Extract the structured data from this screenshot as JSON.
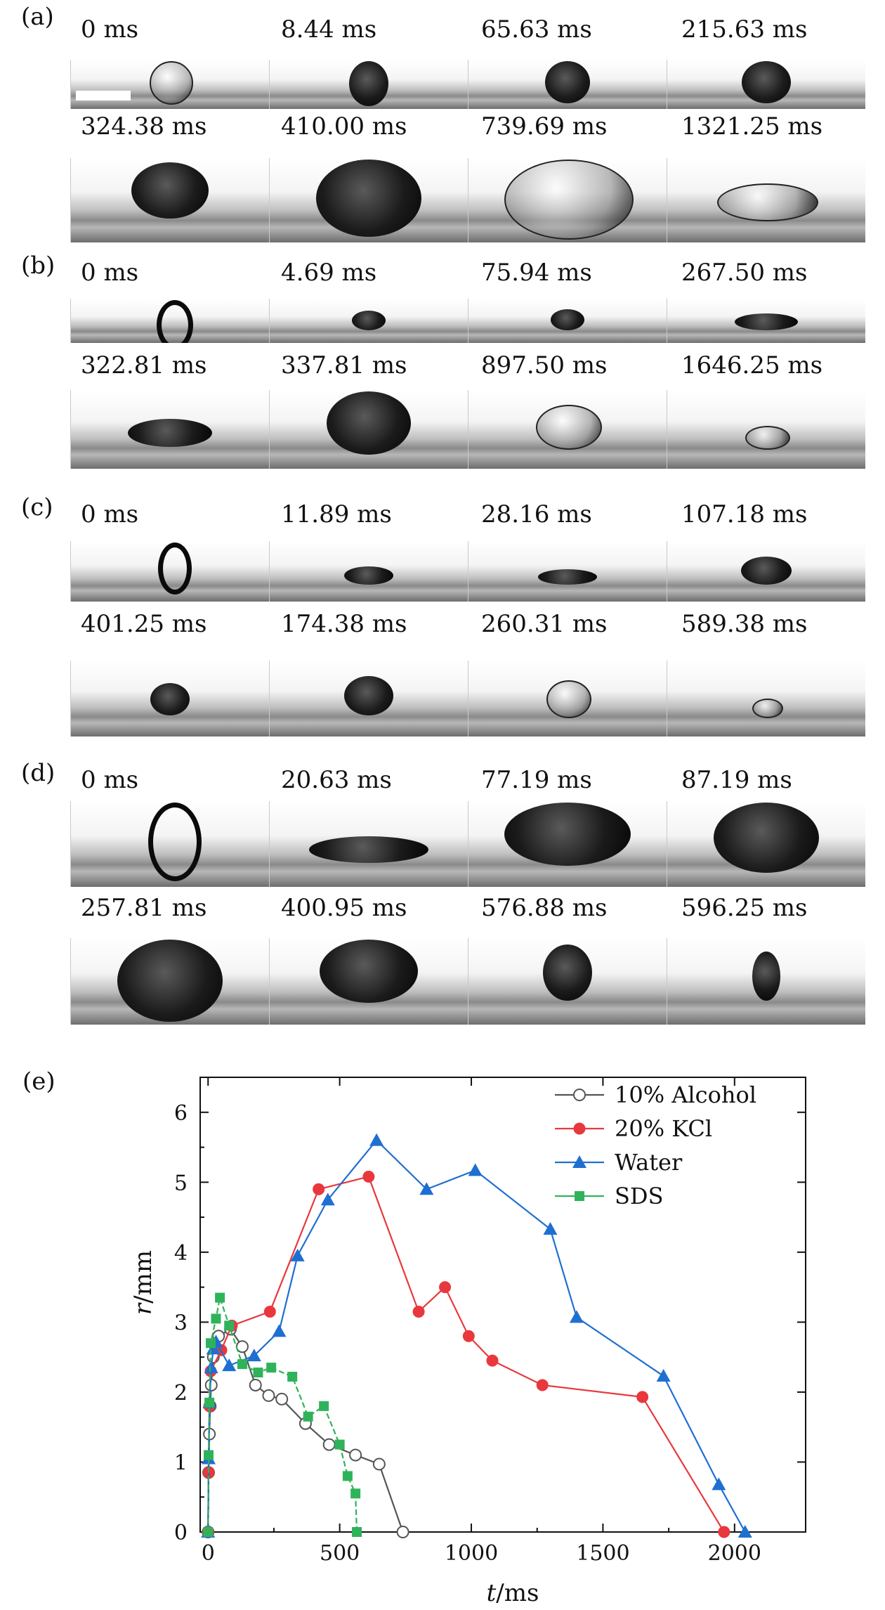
{
  "panels": [
    {
      "letter": "(a)",
      "row1": [
        "0 ms",
        "8.44 ms",
        "65.63 ms",
        "215.63 ms"
      ],
      "row2": [
        "324.38 ms",
        "410.00 ms",
        "739.69 ms",
        "1321.25 ms"
      ]
    },
    {
      "letter": "(b)",
      "row1": [
        "0 ms",
        "4.69 ms",
        "75.94 ms",
        "267.50 ms"
      ],
      "row2": [
        "322.81 ms",
        "337.81 ms",
        "897.50 ms",
        "1646.25 ms"
      ]
    },
    {
      "letter": "(c)",
      "row1": [
        "0 ms",
        "11.89 ms",
        "28.16 ms",
        "107.18 ms"
      ],
      "row2": [
        "401.25 ms",
        "174.38 ms",
        "260.31 ms",
        "589.38 ms"
      ]
    },
    {
      "letter": "(d)",
      "row1": [
        "0 ms",
        "20.63 ms",
        "77.19 ms",
        "87.19 ms"
      ],
      "row2": [
        "257.81 ms",
        "400.95 ms",
        "576.88 ms",
        "596.25 ms"
      ]
    }
  ],
  "chart_data": {
    "type": "line",
    "panel_label": "(e)",
    "xlabel_italic": "t",
    "xlabel_unit": "/ms",
    "ylabel_italic": "r",
    "ylabel_unit": "/mm",
    "xlim": [
      -30,
      2270
    ],
    "ylim": [
      0,
      6.5
    ],
    "xticks": [
      0,
      500,
      1000,
      1500,
      2000
    ],
    "yticks": [
      0,
      1,
      2,
      3,
      4,
      5,
      6
    ],
    "xtick_labels": [
      "0",
      "500",
      "1000",
      "1500",
      "2000"
    ],
    "ytick_labels": [
      "0",
      "1",
      "2",
      "3",
      "4",
      "5",
      "6"
    ],
    "legend_position": "top-right",
    "series": [
      {
        "name": "10% Alcohol",
        "color": "#555555",
        "marker": "circle-open",
        "x": [
          0,
          2,
          5,
          8,
          12,
          20,
          40,
          85,
          130,
          180,
          230,
          280,
          370,
          460,
          560,
          650,
          740
        ],
        "y": [
          0,
          0.85,
          1.4,
          1.8,
          2.1,
          2.5,
          2.8,
          2.9,
          2.65,
          2.1,
          1.95,
          1.9,
          1.55,
          1.25,
          1.1,
          0.97,
          0
        ]
      },
      {
        "name": "20% KCl",
        "color": "#e8383d",
        "marker": "circle-filled",
        "x": [
          0,
          2,
          5,
          10,
          50,
          90,
          235,
          420,
          610,
          800,
          900,
          990,
          1080,
          1270,
          1650,
          1960
        ],
        "y": [
          0,
          0.85,
          1.8,
          2.3,
          2.6,
          2.95,
          3.15,
          4.9,
          5.08,
          3.15,
          3.5,
          2.8,
          2.45,
          2.1,
          1.93,
          0
        ]
      },
      {
        "name": "Water",
        "color": "#1f6fd1",
        "marker": "triangle-filled",
        "x": [
          0,
          2,
          6,
          12,
          20,
          30,
          80,
          175,
          270,
          340,
          455,
          640,
          830,
          1015,
          1300,
          1400,
          1730,
          1940,
          2040
        ],
        "y": [
          0,
          1.05,
          1.85,
          2.35,
          2.62,
          2.72,
          2.38,
          2.52,
          2.87,
          3.95,
          4.75,
          5.6,
          4.9,
          5.17,
          4.33,
          3.07,
          2.23,
          0.68,
          0
        ]
      },
      {
        "name": "SDS",
        "color": "#2fb35a",
        "marker": "square-filled",
        "x": [
          0,
          2,
          5,
          10,
          30,
          45,
          80,
          130,
          190,
          240,
          320,
          380,
          440,
          500,
          530,
          560,
          565
        ],
        "y": [
          0,
          1.1,
          1.85,
          2.7,
          3.05,
          3.35,
          2.95,
          2.4,
          2.28,
          2.35,
          2.22,
          1.65,
          1.8,
          1.25,
          0.8,
          0.55,
          0
        ]
      }
    ]
  }
}
